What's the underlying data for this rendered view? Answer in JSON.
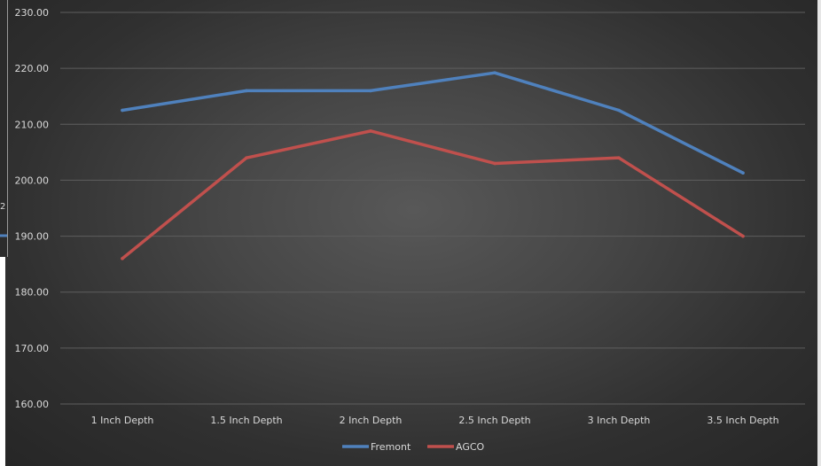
{
  "chart_data": {
    "type": "line",
    "title": "",
    "xlabel": "",
    "ylabel": "",
    "categories": [
      "1 Inch Depth",
      "1.5 Inch Depth",
      "2 Inch Depth",
      "2.5 Inch Depth",
      "3 Inch Depth",
      "3.5 Inch Depth"
    ],
    "series": [
      {
        "name": "Fremont",
        "color": "#4f81bd",
        "values": [
          212.5,
          216.0,
          216.0,
          219.2,
          212.5,
          201.3
        ]
      },
      {
        "name": "AGCO",
        "color": "#c0504d",
        "values": [
          186.0,
          204.0,
          208.8,
          203.0,
          204.0,
          190.0
        ]
      }
    ],
    "ylim": [
      160,
      230
    ],
    "yticks": [
      "160.00",
      "170.00",
      "180.00",
      "190.00",
      "200.00",
      "210.00",
      "220.00",
      "230.00"
    ],
    "grid": true,
    "legend": "bottom"
  },
  "fragment": {
    "mark": "2"
  }
}
